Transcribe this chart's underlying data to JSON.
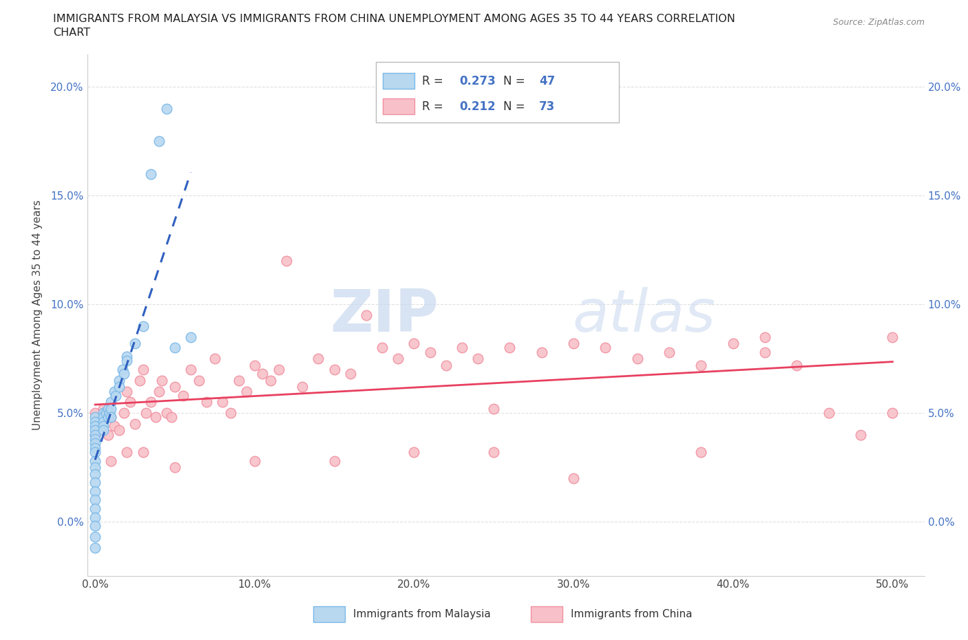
{
  "title_line1": "IMMIGRANTS FROM MALAYSIA VS IMMIGRANTS FROM CHINA UNEMPLOYMENT AMONG AGES 35 TO 44 YEARS CORRELATION",
  "title_line2": "CHART",
  "source": "Source: ZipAtlas.com",
  "ylabel": "Unemployment Among Ages 35 to 44 years",
  "xlim": [
    -0.005,
    0.52
  ],
  "ylim": [
    -0.025,
    0.215
  ],
  "xticks": [
    0.0,
    0.1,
    0.2,
    0.3,
    0.4,
    0.5
  ],
  "yticks": [
    0.0,
    0.05,
    0.1,
    0.15,
    0.2
  ],
  "xtick_labels": [
    "0.0%",
    "10.0%",
    "20.0%",
    "30.0%",
    "40.0%",
    "50.0%"
  ],
  "ytick_labels": [
    "0.0%",
    "5.0%",
    "10.0%",
    "15.0%",
    "20.0%"
  ],
  "malaysia_color": "#7ab8e8",
  "malaysia_color_fill": "#b8d8f0",
  "china_color": "#f090a0",
  "china_color_fill": "#f8c0c8",
  "trend_malaysia_color": "#3060c0",
  "trend_china_color": "#e84060",
  "r_text_color": "#4472c4",
  "legend_label_malaysia": "Immigrants from Malaysia",
  "legend_label_china": "Immigrants from China",
  "legend_r_malaysia": "0.273",
  "legend_n_malaysia": "47",
  "legend_r_china": "0.212",
  "legend_n_china": "73",
  "watermark_zip": "ZIP",
  "watermark_atlas": "atlas",
  "background_color": "#ffffff",
  "grid_color": "#e0e0e0",
  "malaysia_x": [
    0.0,
    0.0,
    0.0,
    0.0,
    0.0,
    0.0,
    0.0,
    0.0,
    0.0,
    0.0,
    0.0,
    0.0,
    0.0,
    0.0,
    0.0,
    0.0,
    0.0,
    0.0,
    0.0,
    0.0,
    0.005,
    0.005,
    0.005,
    0.005,
    0.005,
    0.007,
    0.008,
    0.008,
    0.009,
    0.01,
    0.01,
    0.01,
    0.012,
    0.013,
    0.015,
    0.015,
    0.017,
    0.018,
    0.02,
    0.02,
    0.025,
    0.03,
    0.035,
    0.04,
    0.045,
    0.05,
    0.06
  ],
  "malaysia_y": [
    0.048,
    0.046,
    0.044,
    0.042,
    0.04,
    0.038,
    0.036,
    0.034,
    0.032,
    0.028,
    0.025,
    0.022,
    0.018,
    0.014,
    0.01,
    0.006,
    0.002,
    -0.002,
    -0.007,
    -0.012,
    0.05,
    0.048,
    0.046,
    0.044,
    0.042,
    0.05,
    0.052,
    0.048,
    0.05,
    0.055,
    0.052,
    0.048,
    0.06,
    0.058,
    0.065,
    0.062,
    0.07,
    0.068,
    0.076,
    0.074,
    0.082,
    0.09,
    0.16,
    0.175,
    0.19,
    0.08,
    0.085
  ],
  "china_x": [
    0.0,
    0.005,
    0.008,
    0.01,
    0.012,
    0.015,
    0.018,
    0.02,
    0.022,
    0.025,
    0.028,
    0.03,
    0.032,
    0.035,
    0.038,
    0.04,
    0.042,
    0.045,
    0.048,
    0.05,
    0.055,
    0.06,
    0.065,
    0.07,
    0.075,
    0.08,
    0.085,
    0.09,
    0.095,
    0.1,
    0.105,
    0.11,
    0.115,
    0.12,
    0.13,
    0.14,
    0.15,
    0.16,
    0.17,
    0.18,
    0.19,
    0.2,
    0.21,
    0.22,
    0.23,
    0.24,
    0.25,
    0.26,
    0.28,
    0.3,
    0.32,
    0.34,
    0.36,
    0.38,
    0.4,
    0.42,
    0.44,
    0.46,
    0.48,
    0.5,
    0.5,
    0.42,
    0.38,
    0.3,
    0.25,
    0.2,
    0.15,
    0.1,
    0.05,
    0.03,
    0.02,
    0.01,
    0.0
  ],
  "china_y": [
    0.05,
    0.052,
    0.04,
    0.048,
    0.044,
    0.042,
    0.05,
    0.06,
    0.055,
    0.045,
    0.065,
    0.07,
    0.05,
    0.055,
    0.048,
    0.06,
    0.065,
    0.05,
    0.048,
    0.062,
    0.058,
    0.07,
    0.065,
    0.055,
    0.075,
    0.055,
    0.05,
    0.065,
    0.06,
    0.072,
    0.068,
    0.065,
    0.07,
    0.12,
    0.062,
    0.075,
    0.07,
    0.068,
    0.095,
    0.08,
    0.075,
    0.082,
    0.078,
    0.072,
    0.08,
    0.075,
    0.052,
    0.08,
    0.078,
    0.082,
    0.08,
    0.075,
    0.078,
    0.072,
    0.082,
    0.078,
    0.072,
    0.05,
    0.04,
    0.085,
    0.05,
    0.085,
    0.032,
    0.02,
    0.032,
    0.032,
    0.028,
    0.028,
    0.025,
    0.032,
    0.032,
    0.028,
    0.04
  ]
}
